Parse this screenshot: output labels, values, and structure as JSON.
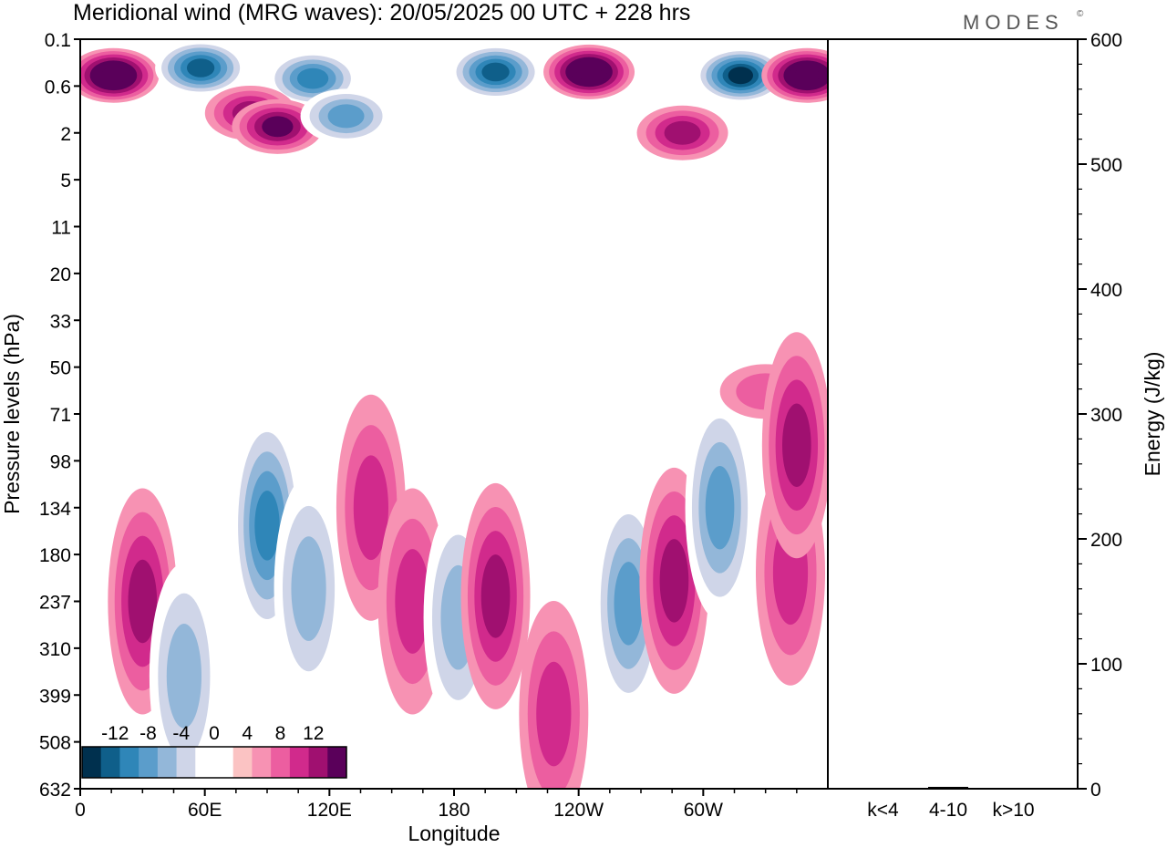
{
  "header": {
    "title": "Meridional wind (MRG waves):  20/05/2025  00 UTC  + 228 hrs",
    "logo": "MODES",
    "logo_mark": "©"
  },
  "chart_data": [
    {
      "type": "heatmap",
      "title": "Meridional wind (MRG waves):  20/05/2025  00 UTC  + 228 hrs",
      "xlabel": "Longitude",
      "ylabel": "Pressure levels (hPa)",
      "x_ticks": [
        "0",
        "60E",
        "120E",
        "180",
        "120W",
        "60W"
      ],
      "x_tick_values": [
        0,
        60,
        120,
        180,
        240,
        300
      ],
      "xlim": [
        0,
        360
      ],
      "y_ticks": [
        "0.1",
        "0.6",
        "2",
        "5",
        "11",
        "20",
        "33",
        "50",
        "71",
        "98",
        "134",
        "180",
        "237",
        "310",
        "399",
        "508",
        "632"
      ],
      "y_scale": "pressure levels, top to bottom",
      "colorbar": {
        "tick_labels": [
          "-12",
          "-8",
          "-4",
          "0",
          "4",
          "8",
          "12"
        ],
        "levels": [
          -16,
          -14,
          -12,
          -10,
          -8,
          -6,
          -4,
          -2,
          0,
          2,
          4,
          6,
          8,
          10,
          12,
          14,
          16
        ],
        "colors": [
          "#00304e",
          "#0f5f8a",
          "#2f86b8",
          "#5b9dcb",
          "#93b7d9",
          "#cfd5e8",
          "#ffffff",
          "#ffffff",
          "#fbc3c3",
          "#f792b3",
          "#ec5ea0",
          "#d12a8c",
          "#a01070",
          "#5a005a"
        ],
        "placement": "bottom-left inside plot"
      },
      "features": [
        {
          "kind": "blob",
          "lon": 16,
          "level": 0.4,
          "value": 14
        },
        {
          "kind": "blob",
          "lon": 58,
          "level": 0.3,
          "value": -12
        },
        {
          "kind": "blob",
          "lon": 112,
          "level": 0.45,
          "value": -10
        },
        {
          "kind": "blob",
          "lon": 82,
          "level": 1.2,
          "value": 8
        },
        {
          "kind": "blob",
          "lon": 95,
          "level": 1.7,
          "value": 10
        },
        {
          "kind": "blob",
          "lon": 128,
          "level": 1.3,
          "value": -8
        },
        {
          "kind": "blob",
          "lon": 200,
          "level": 0.35,
          "value": -12
        },
        {
          "kind": "blob",
          "lon": 245,
          "level": 0.35,
          "value": 14
        },
        {
          "kind": "blob",
          "lon": 318,
          "level": 0.4,
          "value": -14
        },
        {
          "kind": "blob",
          "lon": 350,
          "level": 0.4,
          "value": 14
        },
        {
          "kind": "blob",
          "lon": 290,
          "level": 2.0,
          "value": 8
        },
        {
          "kind": "blob",
          "lon": 30,
          "level": 237,
          "value": 8
        },
        {
          "kind": "blob",
          "lon": 90,
          "level": 150,
          "value": -10
        },
        {
          "kind": "blob",
          "lon": 110,
          "level": 220,
          "value": -6
        },
        {
          "kind": "blob",
          "lon": 50,
          "level": 360,
          "value": -6
        },
        {
          "kind": "blob",
          "lon": 140,
          "level": 134,
          "value": 6
        },
        {
          "kind": "blob",
          "lon": 160,
          "level": 237,
          "value": 6
        },
        {
          "kind": "blob",
          "lon": 182,
          "level": 260,
          "value": -6
        },
        {
          "kind": "blob",
          "lon": 200,
          "level": 230,
          "value": 8
        },
        {
          "kind": "blob",
          "lon": 228,
          "level": 440,
          "value": 6
        },
        {
          "kind": "blob",
          "lon": 264,
          "level": 240,
          "value": -8
        },
        {
          "kind": "blob",
          "lon": 286,
          "level": 210,
          "value": 8
        },
        {
          "kind": "blob",
          "lon": 308,
          "level": 134,
          "value": -8
        },
        {
          "kind": "blob",
          "lon": 342,
          "level": 200,
          "value": 6
        },
        {
          "kind": "blob",
          "lon": 330,
          "level": 60,
          "value": 4
        },
        {
          "kind": "blob",
          "lon": 345,
          "level": 88,
          "value": 8
        }
      ]
    },
    {
      "type": "bar",
      "ylabel": "Energy (J/kg)",
      "categories": [
        "k<4",
        "4-10",
        "k>10"
      ],
      "values": [
        0.5,
        1.5,
        0.3
      ],
      "ylim": [
        0,
        600
      ],
      "y_ticks": [
        "0",
        "100",
        "200",
        "300",
        "400",
        "500",
        "600"
      ],
      "y_axis_side": "right"
    }
  ]
}
